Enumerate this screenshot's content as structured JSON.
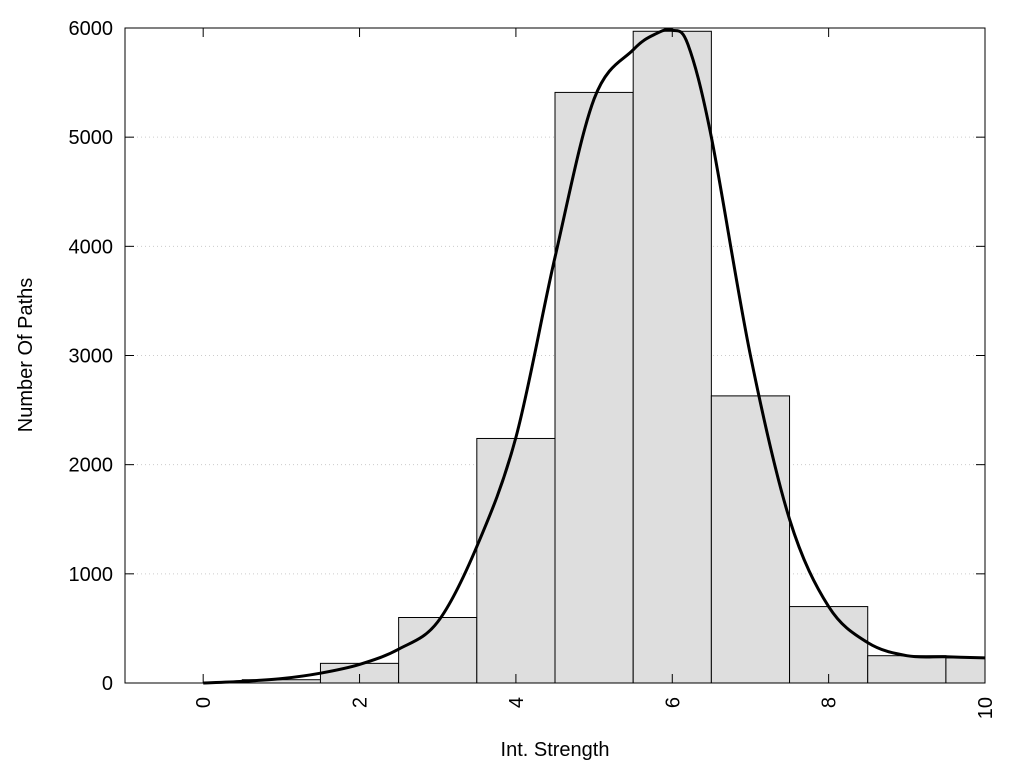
{
  "chart_data": {
    "type": "bar",
    "title": "",
    "xlabel": "Int. Strength",
    "ylabel": "Number Of Paths",
    "xlim": [
      -1,
      10
    ],
    "ylim": [
      0,
      6000
    ],
    "x_ticks": [
      0,
      2,
      4,
      6,
      8,
      10
    ],
    "x_tick_labels": [
      "0",
      "2",
      "4",
      "6",
      "8",
      "10"
    ],
    "y_ticks": [
      0,
      1000,
      2000,
      3000,
      4000,
      5000,
      6000
    ],
    "y_tick_labels": [
      "0",
      "1000",
      "2000",
      "3000",
      "4000",
      "5000",
      "6000"
    ],
    "grid": "horizontal dotted",
    "colors": {
      "bar_fill": "#dedede",
      "bar_stroke": "#000000",
      "curve": "#000000",
      "grid": "#cccccc"
    },
    "series": [
      {
        "type": "histogram",
        "bins": [
          {
            "from": 0,
            "to": 0.5,
            "value": 0
          },
          {
            "from": 0.5,
            "to": 1.5,
            "value": 30
          },
          {
            "from": 1.5,
            "to": 2.5,
            "value": 180
          },
          {
            "from": 2.5,
            "to": 3.5,
            "value": 600
          },
          {
            "from": 3.5,
            "to": 4.5,
            "value": 2240
          },
          {
            "from": 4.5,
            "to": 5.5,
            "value": 5410
          },
          {
            "from": 5.5,
            "to": 6.5,
            "value": 5970
          },
          {
            "from": 6.5,
            "to": 7.5,
            "value": 2630
          },
          {
            "from": 7.5,
            "to": 8.5,
            "value": 700
          },
          {
            "from": 8.5,
            "to": 9.5,
            "value": 250
          },
          {
            "from": 9.5,
            "to": 10,
            "value": 230
          }
        ]
      },
      {
        "type": "line",
        "x": [
          0,
          0.5,
          1,
          1.5,
          2,
          2.5,
          3,
          3.5,
          4,
          4.5,
          5,
          5.5,
          5.8,
          6,
          6.2,
          6.5,
          7,
          7.5,
          8,
          8.5,
          9,
          9.5,
          10
        ],
        "y": [
          0,
          15,
          40,
          90,
          170,
          310,
          560,
          1250,
          2250,
          3900,
          5350,
          5800,
          5950,
          5980,
          5850,
          5000,
          3000,
          1500,
          700,
          370,
          250,
          240,
          230
        ]
      }
    ]
  }
}
